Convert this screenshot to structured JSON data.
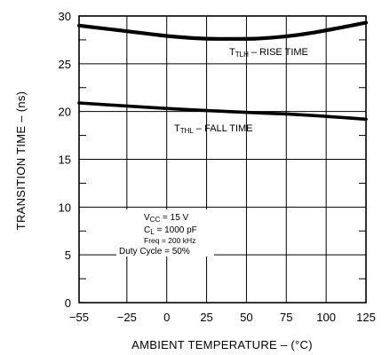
{
  "chart_data": {
    "type": "line",
    "xlabel": "AMBIENT TEMPERATURE – (°C)",
    "ylabel": "TRANSITION TIME – (ns)",
    "xlim": [
      -55,
      125
    ],
    "ylim": [
      0,
      30
    ],
    "x_ticks": [
      -55,
      -25,
      0,
      25,
      50,
      75,
      100,
      125
    ],
    "y_ticks": [
      0,
      5,
      10,
      15,
      20,
      25,
      30
    ],
    "grid": true,
    "series": [
      {
        "name": "TTLH – RISE TIME",
        "x": [
          -55,
          -40,
          -25,
          -10,
          0,
          10,
          25,
          40,
          50,
          60,
          75,
          90,
          100,
          110,
          125
        ],
        "y": [
          29.0,
          28.7,
          28.4,
          28.1,
          27.9,
          27.75,
          27.6,
          27.6,
          27.6,
          27.65,
          27.85,
          28.2,
          28.5,
          28.8,
          29.3
        ]
      },
      {
        "name": "TTHL – FALL TIME",
        "x": [
          -55,
          0,
          50,
          75,
          100,
          125
        ],
        "y": [
          20.9,
          20.3,
          19.9,
          19.75,
          19.5,
          19.2
        ]
      }
    ],
    "annotations": {
      "rise": {
        "main": "T",
        "sub": "TLH",
        "rest": " – RISE TIME"
      },
      "fall": {
        "main": "T",
        "sub": "THL",
        "rest": " – FALL TIME"
      },
      "conditions": {
        "vcc_main": "V",
        "vcc_sub": "CC",
        "vcc_rest": " = 15 V",
        "cl_main": "C",
        "cl_sub": "L",
        "cl_rest": " = 1000 pF",
        "freq_main": "Freq",
        "freq_rest": " =  200 kHz",
        "duty": "Duty Cycle =  50%"
      }
    }
  }
}
